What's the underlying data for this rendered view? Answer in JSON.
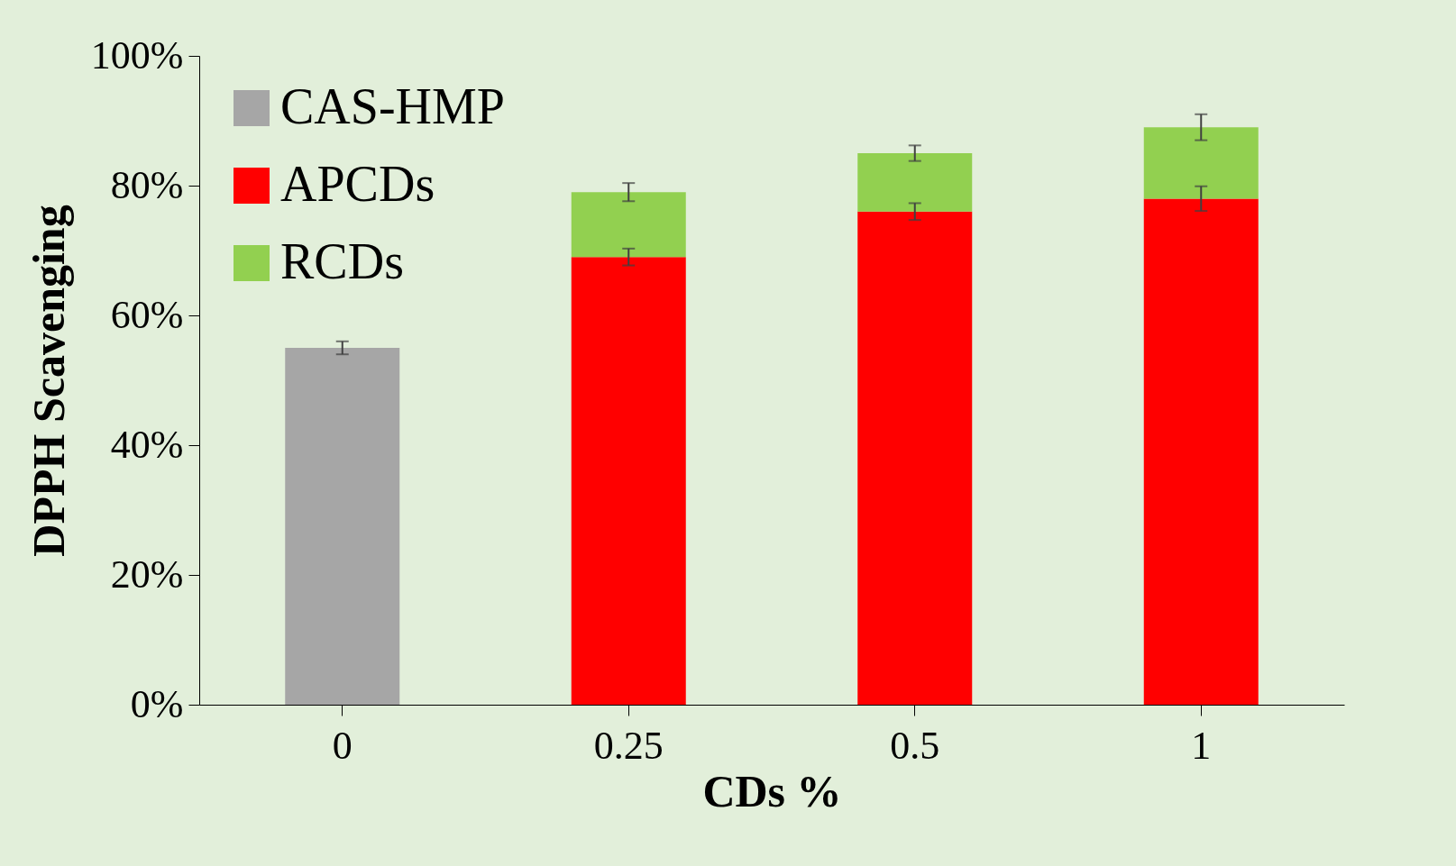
{
  "chart_data": {
    "type": "bar",
    "stacked": true,
    "xlabel": "CDs %",
    "ylabel": "DPPH Scavenging",
    "categories": [
      "0",
      "0.25",
      "0.5",
      "1"
    ],
    "series": [
      {
        "name": "CAS-HMP",
        "color": "#a6a6a6",
        "values": [
          55,
          null,
          null,
          null
        ],
        "errors": [
          1,
          null,
          null,
          null
        ]
      },
      {
        "name": "APCDs",
        "color": "#ff0000",
        "values": [
          null,
          69,
          76,
          78
        ],
        "errors": [
          null,
          1.3,
          1.3,
          1.9
        ]
      },
      {
        "name": "RCDs",
        "color": "#92d050",
        "values": [
          null,
          10,
          9,
          11
        ],
        "errors": [
          null,
          1.4,
          1.2,
          2
        ]
      }
    ],
    "ylim": [
      0,
      100
    ],
    "yticks": [
      {
        "value": 0,
        "label": "0%"
      },
      {
        "value": 20,
        "label": "20%"
      },
      {
        "value": 40,
        "label": "40%"
      },
      {
        "value": 60,
        "label": "60%"
      },
      {
        "value": 80,
        "label": "80%"
      },
      {
        "value": 100,
        "label": "100%"
      }
    ],
    "grid": false,
    "legend": "top left"
  }
}
